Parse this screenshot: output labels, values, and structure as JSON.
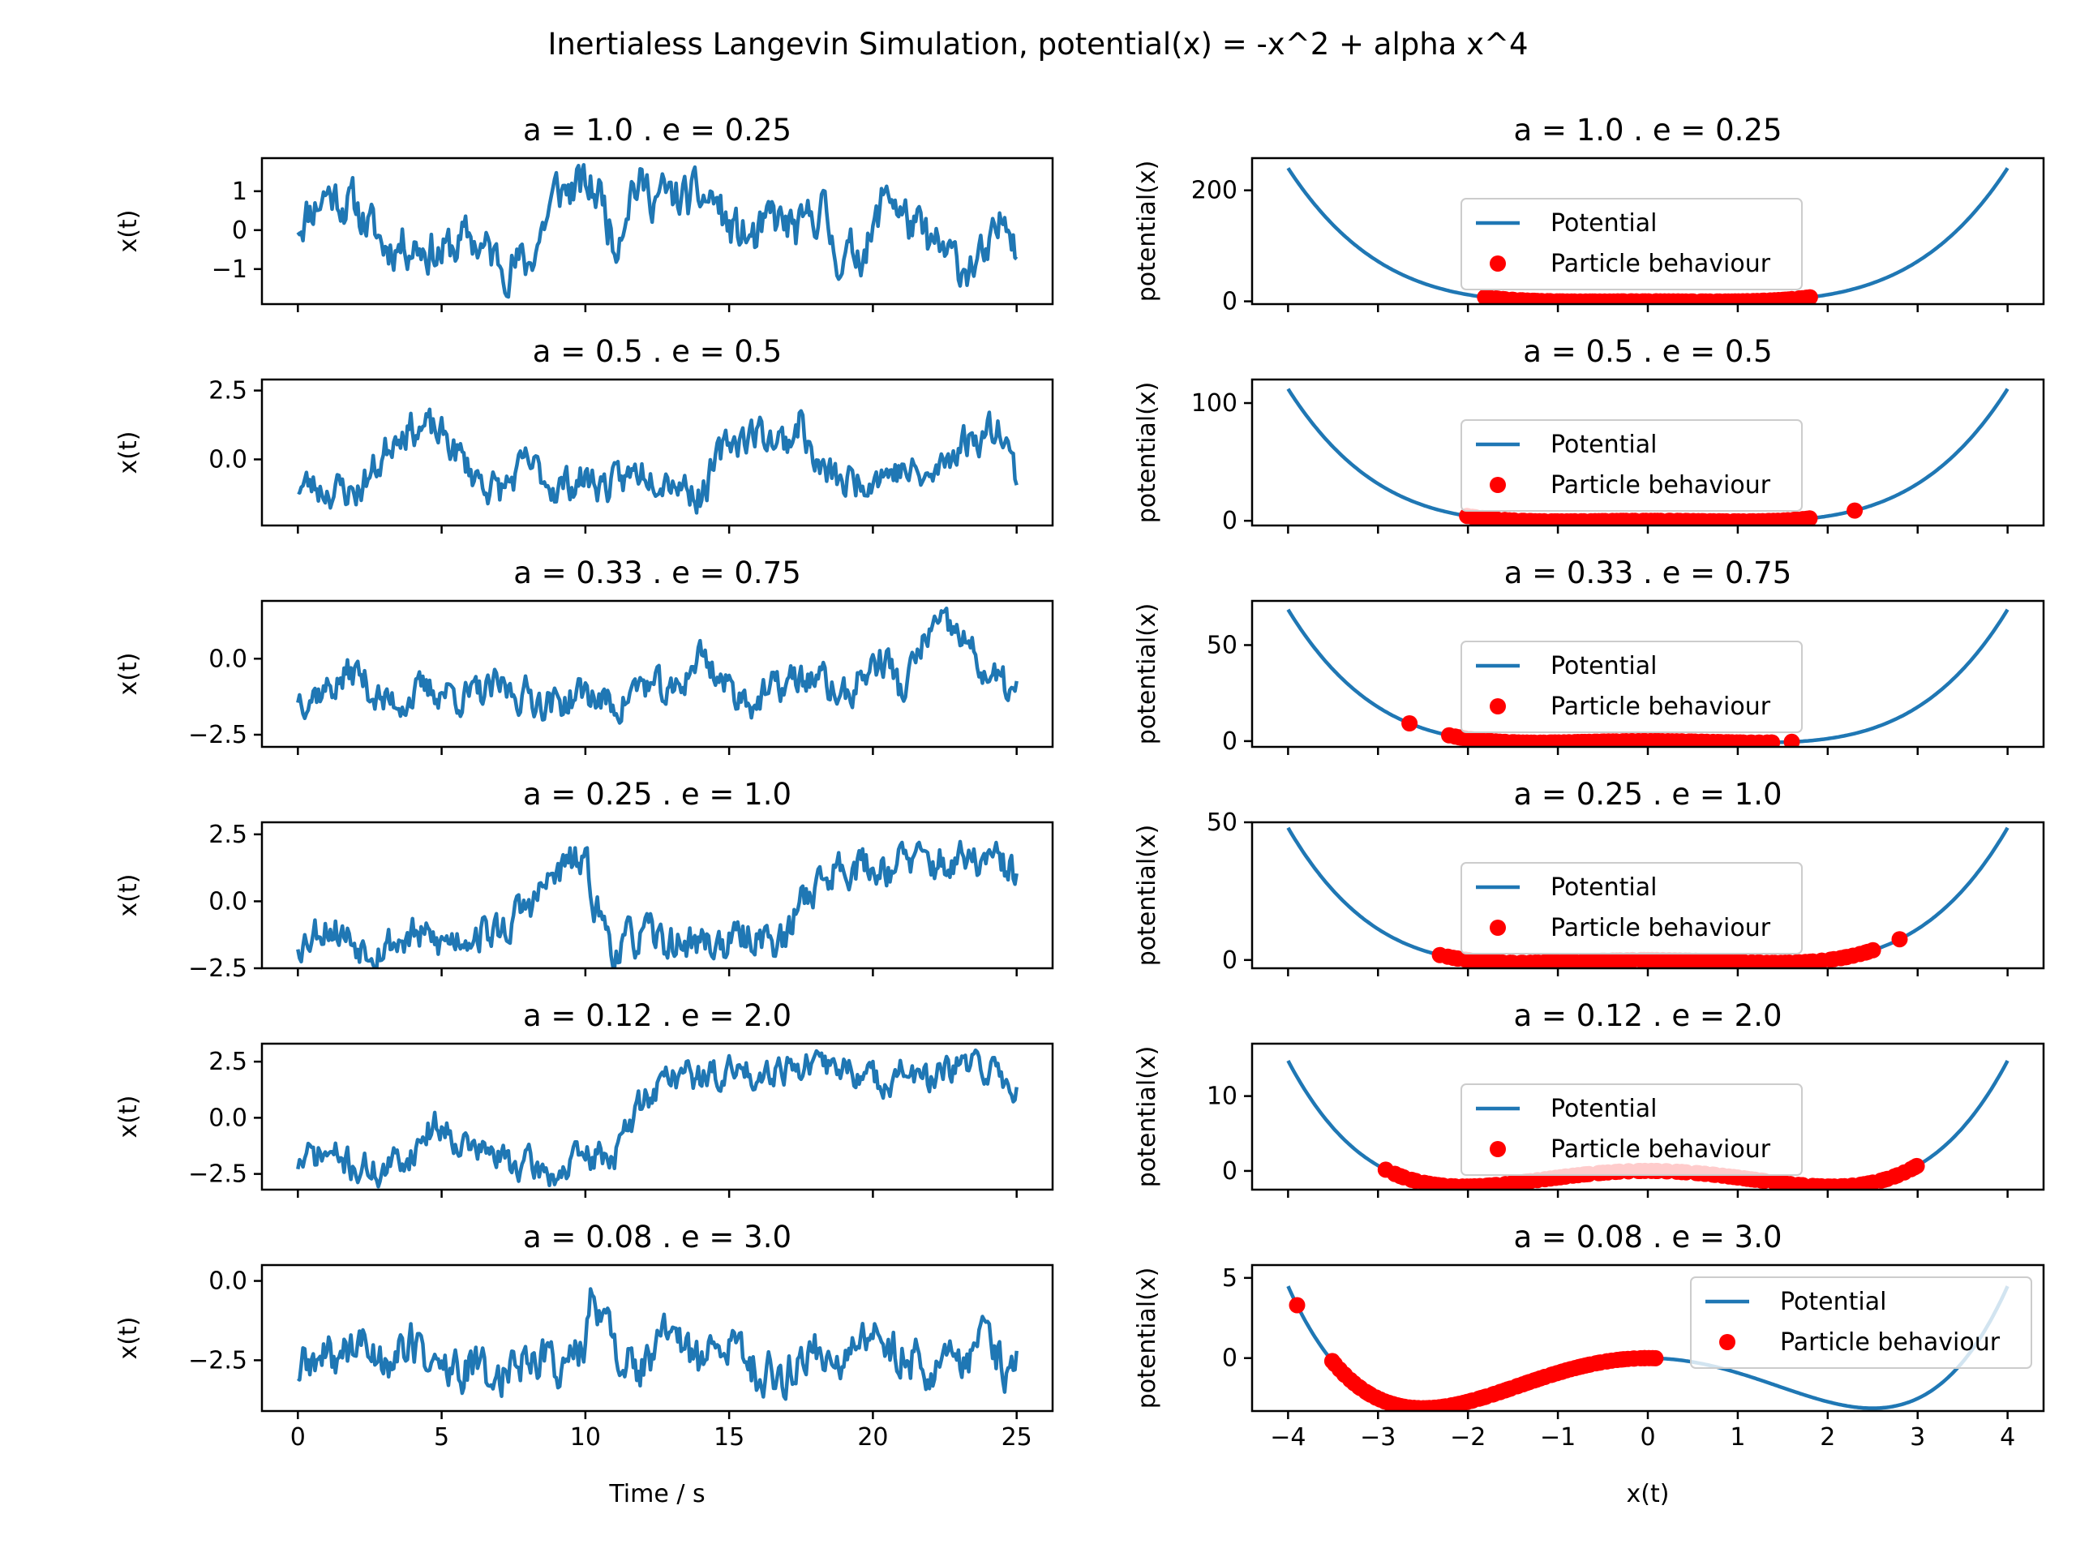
{
  "figure_title": "Inertialess Langevin Simulation, potential(x) = -x^2 + alpha x^4",
  "legend": {
    "line_label": "Potential",
    "dots_label": "Particle behaviour"
  },
  "colors": {
    "line": "#1f77b4",
    "dots": "#ff0000",
    "axes": "#000000",
    "legend_edge": "#cccccc"
  },
  "chart_data": [
    {
      "type": "line",
      "title": "a = 1.0 . e = 0.25",
      "xlabel": "",
      "ylabel": "x(t)",
      "xlim": [
        -1.25,
        26.25
      ],
      "ylim": [
        -1.9,
        1.85
      ],
      "xticks": [
        0,
        5,
        10,
        15,
        20,
        25
      ],
      "yticks": [
        -1,
        0,
        1
      ],
      "ytick_labels": [
        "−1",
        "0",
        "1"
      ],
      "seed": 11,
      "x_range": [
        0,
        25
      ],
      "anchors": [
        [
          0,
          0.2
        ],
        [
          1,
          1.0
        ],
        [
          2,
          0.6
        ],
        [
          3,
          -0.4
        ],
        [
          4,
          -0.3
        ],
        [
          5,
          -0.6
        ],
        [
          6,
          -0.2
        ],
        [
          7,
          -0.8
        ],
        [
          8,
          -0.9
        ],
        [
          9,
          1.0
        ],
        [
          10,
          1.1
        ],
        [
          10.6,
          0.9
        ],
        [
          11,
          -0.4
        ],
        [
          11.6,
          1.2
        ],
        [
          12.5,
          0.9
        ],
        [
          13,
          0.8
        ],
        [
          14.5,
          0.8
        ],
        [
          15,
          0.0
        ],
        [
          16,
          -0.3
        ],
        [
          16.5,
          0.3
        ],
        [
          17.5,
          -0.1
        ],
        [
          18.2,
          0.7
        ],
        [
          18.6,
          -0.4
        ],
        [
          19,
          -0.8
        ],
        [
          20,
          -0.2
        ],
        [
          20.5,
          1.2
        ],
        [
          21,
          0.4
        ],
        [
          22,
          -0.4
        ],
        [
          23,
          -0.9
        ],
        [
          24,
          -0.8
        ],
        [
          24.7,
          0.6
        ],
        [
          25,
          -0.3
        ]
      ],
      "noise": 0.45
    },
    {
      "type": "line",
      "title": "a = 0.5 . e = 0.5",
      "xlabel": "",
      "ylabel": "x(t)",
      "xlim": [
        -1.25,
        26.25
      ],
      "ylim": [
        -2.4,
        2.9
      ],
      "xticks": [
        0,
        5,
        10,
        15,
        20,
        25
      ],
      "yticks": [
        0,
        2.5
      ],
      "ytick_labels": [
        "0.0",
        "2.5"
      ],
      "seed": 23,
      "x_range": [
        0,
        25
      ],
      "anchors": [
        [
          0,
          -0.9
        ],
        [
          2,
          -1.2
        ],
        [
          2.8,
          -0.2
        ],
        [
          3.5,
          1.2
        ],
        [
          4.5,
          1.1
        ],
        [
          5.2,
          0.7
        ],
        [
          6,
          -0.4
        ],
        [
          7,
          -1.2
        ],
        [
          8,
          -0.2
        ],
        [
          9,
          -1.0
        ],
        [
          10,
          -0.7
        ],
        [
          11,
          -1.0
        ],
        [
          12,
          -0.3
        ],
        [
          13,
          -0.6
        ],
        [
          14,
          -1.3
        ],
        [
          15,
          0.7
        ],
        [
          16,
          1.0
        ],
        [
          17,
          0.6
        ],
        [
          17.5,
          1.5
        ],
        [
          18,
          -0.3
        ],
        [
          19,
          -0.9
        ],
        [
          20,
          -0.5
        ],
        [
          21,
          -0.4
        ],
        [
          22,
          -0.8
        ],
        [
          23,
          0.6
        ],
        [
          24,
          1.0
        ],
        [
          24.5,
          1.4
        ],
        [
          25,
          -0.8
        ]
      ],
      "noise": 0.5
    },
    {
      "type": "line",
      "title": "a = 0.33 . e = 0.75",
      "xlabel": "",
      "ylabel": "x(t)",
      "xlim": [
        -1.25,
        26.25
      ],
      "ylim": [
        -2.9,
        1.9
      ],
      "xticks": [
        0,
        5,
        10,
        15,
        20,
        25
      ],
      "yticks": [
        -2.5,
        0
      ],
      "ytick_labels": [
        "−2.5",
        "0.0"
      ],
      "seed": 37,
      "x_range": [
        0,
        25
      ],
      "anchors": [
        [
          0,
          -1.2
        ],
        [
          1,
          -1.0
        ],
        [
          2,
          -0.4
        ],
        [
          3,
          -1.5
        ],
        [
          4,
          -1.2
        ],
        [
          5,
          -1.0
        ],
        [
          6,
          -1.3
        ],
        [
          7,
          -1.0
        ],
        [
          8,
          -1.2
        ],
        [
          9,
          -1.5
        ],
        [
          10,
          -1.1
        ],
        [
          11,
          -1.6
        ],
        [
          12,
          -0.8
        ],
        [
          13,
          -1.3
        ],
        [
          14,
          0.2
        ],
        [
          15,
          -1.0
        ],
        [
          16,
          -1.4
        ],
        [
          17,
          -0.8
        ],
        [
          18,
          -0.6
        ],
        [
          19,
          -1.3
        ],
        [
          20,
          -0.2
        ],
        [
          20.5,
          0.0
        ],
        [
          21,
          -1.2
        ],
        [
          22,
          1.0
        ],
        [
          23,
          0.8
        ],
        [
          24,
          -0.6
        ],
        [
          25,
          -1.2
        ]
      ],
      "noise": 0.45
    },
    {
      "type": "line",
      "title": "a = 0.25 . e = 1.0",
      "xlabel": "",
      "ylabel": "x(t)",
      "xlim": [
        -1.25,
        26.25
      ],
      "ylim": [
        -2.5,
        2.95
      ],
      "xticks": [
        0,
        5,
        10,
        15,
        20,
        25
      ],
      "yticks": [
        -2.5,
        0,
        2.5
      ],
      "ytick_labels": [
        "−2.5",
        "0.0",
        "2.5"
      ],
      "seed": 53,
      "x_range": [
        0,
        25
      ],
      "anchors": [
        [
          0,
          -1.5
        ],
        [
          1,
          -0.8
        ],
        [
          2,
          -1.5
        ],
        [
          3,
          -1.6
        ],
        [
          4,
          -1.3
        ],
        [
          5,
          -1.6
        ],
        [
          6,
          -1.1
        ],
        [
          7,
          -1.2
        ],
        [
          8,
          -0.2
        ],
        [
          9,
          1.0
        ],
        [
          9.6,
          1.5
        ],
        [
          10,
          1.2
        ],
        [
          10.5,
          -0.5
        ],
        [
          11,
          -1.8
        ],
        [
          12,
          -1.3
        ],
        [
          13,
          -1.6
        ],
        [
          14,
          -1.5
        ],
        [
          15,
          -1.6
        ],
        [
          16,
          -1.2
        ],
        [
          17,
          -1.6
        ],
        [
          17.5,
          0.2
        ],
        [
          18.5,
          1.0
        ],
        [
          19,
          1.5
        ],
        [
          20,
          1.2
        ],
        [
          21,
          1.5
        ],
        [
          22,
          1.4
        ],
        [
          23,
          1.4
        ],
        [
          24,
          1.5
        ],
        [
          25,
          1.0
        ]
      ],
      "noise": 0.55
    },
    {
      "type": "line",
      "title": "a = 0.12 . e = 2.0",
      "xlabel": "",
      "ylabel": "x(t)",
      "xlim": [
        -1.25,
        26.25
      ],
      "ylim": [
        -3.2,
        3.3
      ],
      "xticks": [
        0,
        5,
        10,
        15,
        20,
        25
      ],
      "yticks": [
        -2.5,
        0,
        2.5
      ],
      "ytick_labels": [
        "−2.5",
        "0.0",
        "2.5"
      ],
      "seed": 71,
      "x_range": [
        0,
        25
      ],
      "anchors": [
        [
          0,
          -2.0
        ],
        [
          1,
          -1.6
        ],
        [
          2,
          -2.2
        ],
        [
          3,
          -2.4
        ],
        [
          4,
          -1.5
        ],
        [
          4.5,
          -0.5
        ],
        [
          5,
          -0.3
        ],
        [
          6,
          -1.3
        ],
        [
          7,
          -1.8
        ],
        [
          8,
          -2.2
        ],
        [
          9,
          -2.5
        ],
        [
          10,
          -1.8
        ],
        [
          11,
          -1.6
        ],
        [
          11.5,
          -0.5
        ],
        [
          12,
          0.8
        ],
        [
          13,
          2.0
        ],
        [
          14,
          1.8
        ],
        [
          15,
          2.0
        ],
        [
          16,
          2.1
        ],
        [
          17,
          2.4
        ],
        [
          18,
          2.2
        ],
        [
          19,
          2.3
        ],
        [
          20,
          1.6
        ],
        [
          21,
          2.0
        ],
        [
          22,
          1.6
        ],
        [
          23,
          2.2
        ],
        [
          24,
          2.3
        ],
        [
          25,
          1.2
        ]
      ],
      "noise": 0.55
    },
    {
      "type": "line",
      "title": "a = 0.08 . e = 3.0",
      "xlabel": "Time / s",
      "ylabel": "x(t)",
      "xlim": [
        -1.25,
        26.25
      ],
      "ylim": [
        -4.1,
        0.5
      ],
      "xticks": [
        0,
        5,
        10,
        15,
        20,
        25
      ],
      "yticks": [
        -2.5,
        0
      ],
      "ytick_labels": [
        "−2.5",
        "0.0"
      ],
      "xtick_labels": [
        "0",
        "5",
        "10",
        "15",
        "20",
        "25"
      ],
      "seed": 89,
      "x_range": [
        0,
        25
      ],
      "anchors": [
        [
          0,
          -2.8
        ],
        [
          1,
          -2.5
        ],
        [
          2,
          -2.0
        ],
        [
          3,
          -2.4
        ],
        [
          4,
          -2.0
        ],
        [
          5,
          -2.8
        ],
        [
          6,
          -2.8
        ],
        [
          7,
          -3.0
        ],
        [
          8,
          -2.2
        ],
        [
          9,
          -2.6
        ],
        [
          10,
          -2.2
        ],
        [
          10.3,
          -0.2
        ],
        [
          10.8,
          -1.5
        ],
        [
          11,
          -2.2
        ],
        [
          12,
          -2.8
        ],
        [
          13,
          -1.6
        ],
        [
          14,
          -2.6
        ],
        [
          15,
          -2.0
        ],
        [
          16,
          -2.8
        ],
        [
          17,
          -3.0
        ],
        [
          18,
          -2.0
        ],
        [
          19,
          -2.6
        ],
        [
          20,
          -1.8
        ],
        [
          21,
          -2.2
        ],
        [
          22,
          -2.6
        ],
        [
          23,
          -2.9
        ],
        [
          24,
          -1.2
        ],
        [
          24.5,
          -2.8
        ],
        [
          25,
          -2.8
        ]
      ],
      "noise": 0.55
    },
    {
      "type": "line+scatter",
      "title": "a = 1.0 . e = 0.25",
      "xlabel": "",
      "ylabel": "potential(x)",
      "alpha": 1.0,
      "xlim": [
        -4.4,
        4.4
      ],
      "ylim": [
        -5,
        258
      ],
      "xticks": [
        -4,
        -3,
        -2,
        -1,
        0,
        1,
        2,
        3,
        4
      ],
      "yticks": [
        0,
        200
      ],
      "ytick_labels": [
        "0",
        "200"
      ],
      "legend_pos": "upper-center",
      "curve_range": [
        -4,
        4
      ],
      "dot_range": [
        -1.8,
        1.8
      ],
      "dot_count": 80,
      "seed": 101
    },
    {
      "type": "line+scatter",
      "title": "a = 0.5 . e = 0.5",
      "xlabel": "",
      "ylabel": "potential(x)",
      "alpha": 0.5,
      "xlim": [
        -4.4,
        4.4
      ],
      "ylim": [
        -4,
        120
      ],
      "xticks": [
        -4,
        -3,
        -2,
        -1,
        0,
        1,
        2,
        3,
        4
      ],
      "yticks": [
        0,
        100
      ],
      "ytick_labels": [
        "0",
        "100"
      ],
      "legend_pos": "upper-center",
      "curve_range": [
        -4,
        4
      ],
      "dot_range": [
        -2.0,
        1.8
      ],
      "dot_count": 80,
      "extra_dots": [
        2.3
      ],
      "seed": 113
    },
    {
      "type": "line+scatter",
      "title": "a = 0.33 . e = 0.75",
      "xlabel": "",
      "ylabel": "potential(x)",
      "alpha": 0.33,
      "xlim": [
        -4.4,
        4.4
      ],
      "ylim": [
        -3,
        73
      ],
      "xticks": [
        -4,
        -3,
        -2,
        -1,
        0,
        1,
        2,
        3,
        4
      ],
      "yticks": [
        0,
        50
      ],
      "ytick_labels": [
        "0",
        "50"
      ],
      "legend_pos": "upper-center",
      "curve_range": [
        -4,
        4
      ],
      "dot_range": [
        -2.2,
        1.4
      ],
      "dot_count": 80,
      "extra_dots": [
        -2.65,
        1.6
      ],
      "seed": 127
    },
    {
      "type": "line+scatter",
      "title": "a = 0.25 . e = 1.0",
      "xlabel": "",
      "ylabel": "potential(x)",
      "alpha": 0.25,
      "xlim": [
        -4.4,
        4.4
      ],
      "ylim": [
        -3,
        50
      ],
      "xticks": [
        -4,
        -3,
        -2,
        -1,
        0,
        1,
        2,
        3,
        4
      ],
      "yticks": [
        0,
        50
      ],
      "ytick_labels": [
        "0",
        "50"
      ],
      "legend_pos": "upper-center",
      "curve_range": [
        -4,
        4
      ],
      "dot_range": [
        -2.3,
        2.5
      ],
      "dot_count": 90,
      "extra_dots": [
        2.8
      ],
      "seed": 139
    },
    {
      "type": "line+scatter",
      "title": "a = 0.12 . e = 2.0",
      "xlabel": "",
      "ylabel": "potential(x)",
      "alpha": 0.12,
      "xlim": [
        -4.4,
        4.4
      ],
      "ylim": [
        -2.5,
        17
      ],
      "xticks": [
        -4,
        -3,
        -2,
        -1,
        0,
        1,
        2,
        3,
        4
      ],
      "yticks": [
        0,
        10
      ],
      "ytick_labels": [
        "0",
        "10"
      ],
      "legend_pos": "upper-center",
      "curve_range": [
        -4,
        4
      ],
      "dot_range": [
        -2.9,
        3.0
      ],
      "dot_count": 110,
      "seed": 151
    },
    {
      "type": "line+scatter",
      "title": "a = 0.08 . e = 3.0",
      "xlabel": "x(t)",
      "ylabel": "potential(x)",
      "alpha": 0.08,
      "xlim": [
        -4.4,
        4.4
      ],
      "ylim": [
        -3.3,
        5.8
      ],
      "xticks": [
        -4,
        -3,
        -2,
        -1,
        0,
        1,
        2,
        3,
        4
      ],
      "yticks": [
        0,
        5
      ],
      "ytick_labels": [
        "0",
        "5"
      ],
      "xtick_labels": [
        "−4",
        "−3",
        "−2",
        "−1",
        "0",
        "1",
        "2",
        "3",
        "4"
      ],
      "legend_pos": "upper-right",
      "curve_range": [
        -4,
        4
      ],
      "dot_range": [
        -3.5,
        0.1
      ],
      "dot_count": 95,
      "extra_dots": [
        -3.9
      ],
      "seed": 163
    }
  ]
}
